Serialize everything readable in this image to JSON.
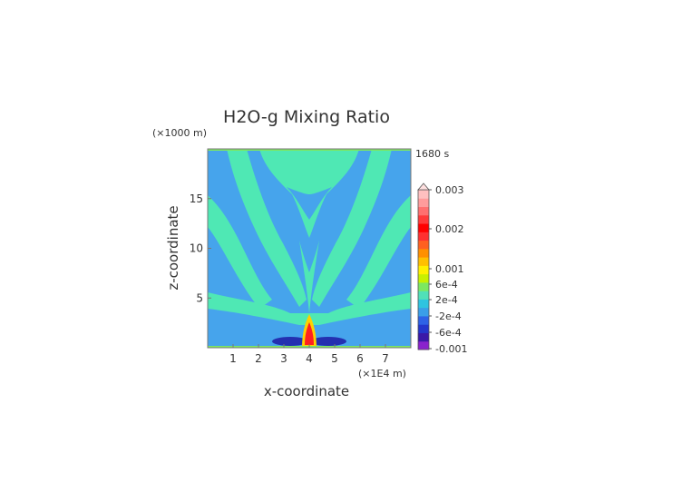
{
  "chart_data": {
    "type": "heatmap",
    "title": "H2O-g Mixing Ratio",
    "time_label": "1680 s",
    "xlabel": "x-coordinate",
    "ylabel": "z-coordinate",
    "x_unit": "(×1E4 m)",
    "y_unit": "(×1000 m)",
    "xlim": [
      0,
      8
    ],
    "ylim": [
      0,
      20
    ],
    "x_ticks": [
      "1",
      "2",
      "3",
      "4",
      "5",
      "6",
      "7"
    ],
    "y_ticks": [
      "5",
      "10",
      "15"
    ],
    "colorbar_labels": [
      "0.003",
      "0.002",
      "0.001",
      "6e-4",
      "2e-4",
      "-2e-4",
      "-6e-4",
      "-0.001"
    ],
    "colorbar_colors": [
      "#8a22cc",
      "#3a18a8",
      "#2436cc",
      "#2e62e6",
      "#3a9ee8",
      "#2fc4e0",
      "#50e0b8",
      "#7ce860",
      "#c8f000",
      "#fff000",
      "#ffc000",
      "#ff9000",
      "#ff6020",
      "#ff3030",
      "#ff0000",
      "#ff3a3a",
      "#ff7070",
      "#ff9c9c",
      "#ffc0c0"
    ],
    "colors": {
      "background": "#46a4ec",
      "band": "#4fe8b4",
      "deep_negative": "#2430b0",
      "core_outer": "#ffd000",
      "core_inner": "#ff2020"
    }
  }
}
